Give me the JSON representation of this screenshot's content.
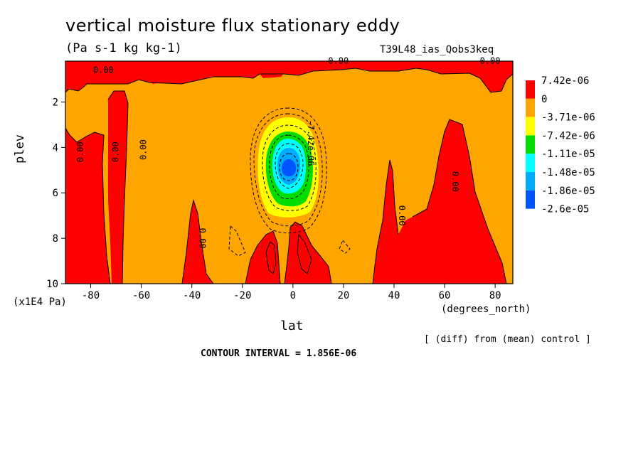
{
  "header": {
    "title": "vertical moisture flux stationary eddy",
    "units": "(Pa s-1 kg kg-1)",
    "run_id": "T39L48_ias_Qobs3keq"
  },
  "footer": {
    "x_unit": "(degrees_north)",
    "y_unit": "(x1E4 Pa)",
    "diff_note": "[ (diff) from (mean) control ]",
    "contour_interval": "CONTOUR INTERVAL = 1.856E-06"
  },
  "colors": {
    "red": "#ff0000",
    "orange": "#ffa500",
    "yellow": "#ffff00",
    "green": "#00dd00",
    "cyan": "#00ffff",
    "lightblue": "#00aaff",
    "blue": "#0055ff"
  },
  "chart_data": {
    "type": "heatmap",
    "title": "vertical moisture flux stationary eddy",
    "xlabel": "lat",
    "ylabel": "plev",
    "xlim": [
      -90,
      87
    ],
    "ylim": [
      10,
      0.2
    ],
    "x_ticks": [
      -80,
      -60,
      -40,
      -20,
      0,
      20,
      40,
      60,
      80
    ],
    "y_ticks": [
      2,
      4,
      6,
      8,
      10
    ],
    "contour_labels": [
      {
        "text": "0.00",
        "lat": -75,
        "plev": 0.6,
        "rot": 0
      },
      {
        "text": "0.00",
        "lat": 18,
        "plev": 0.2,
        "rot": 0
      },
      {
        "text": "0.00",
        "lat": 78,
        "plev": 0.2,
        "rot": 0
      },
      {
        "text": "0.00",
        "lat": -84,
        "plev": 4.2,
        "rot": -90
      },
      {
        "text": "0.00",
        "lat": -70,
        "plev": 4.2,
        "rot": -90
      },
      {
        "text": "0.00",
        "lat": -59,
        "plev": 4.1,
        "rot": -90
      },
      {
        "text": "0.00",
        "lat": -36,
        "plev": 8.0,
        "rot": 90
      },
      {
        "text": "0.00",
        "lat": 43,
        "plev": 7.0,
        "rot": 90
      },
      {
        "text": "0.00",
        "lat": 64,
        "plev": 5.5,
        "rot": 90
      },
      {
        "text": "-7.42e-06",
        "lat": 7,
        "plev": 3.8,
        "rot": 90
      }
    ],
    "legend": {
      "labels": [
        "7.42e-06",
        "0",
        "-3.71e-06",
        "-7.42e-06",
        "-1.11e-05",
        "-1.48e-05",
        "-1.86e-05",
        "-2.6e-05"
      ],
      "colors": [
        "red",
        "orange",
        "yellow",
        "green",
        "cyan",
        "lightblue",
        "blue"
      ]
    }
  }
}
